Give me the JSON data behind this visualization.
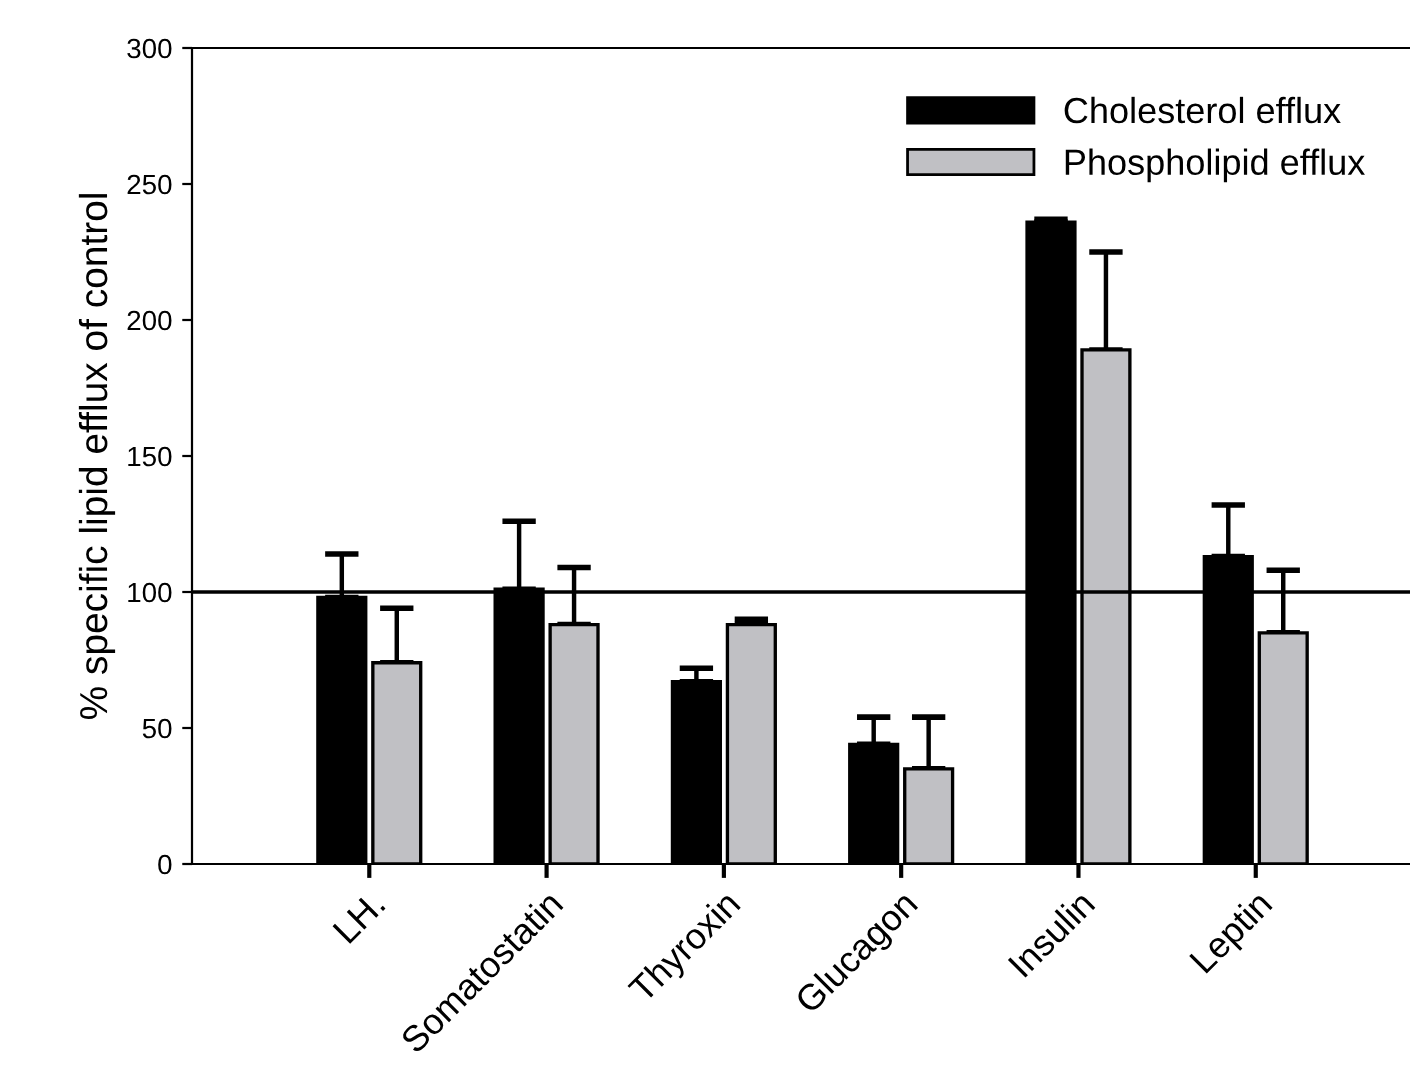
{
  "chart_data": {
    "type": "bar",
    "ylabel": "% specific lipid efflux of control",
    "categories": [
      "LH.",
      "Somatostatin",
      "Thyroxin",
      "Glucagon",
      "Insulin",
      "Leptin"
    ],
    "series": [
      {
        "name": "Cholesterol efflux",
        "color": "#000000",
        "values": [
          98,
          101,
          67,
          44,
          236,
          113
        ],
        "errors": [
          [
            98,
            114
          ],
          [
            101,
            126
          ],
          [
            67,
            72
          ],
          [
            44,
            54
          ],
          [
            236,
            237
          ],
          [
            113,
            132
          ]
        ]
      },
      {
        "name": "Phospholipid efflux",
        "color": "#c0c0c4",
        "values": [
          74,
          88,
          88,
          35,
          189,
          85
        ],
        "errors": [
          [
            74,
            94
          ],
          [
            88,
            109
          ],
          [
            88,
            90
          ],
          [
            35,
            54
          ],
          [
            189,
            225
          ],
          [
            85,
            108
          ]
        ]
      }
    ],
    "ylim": [
      0,
      300
    ],
    "yticks": [
      0,
      50,
      100,
      150,
      200,
      250,
      300
    ],
    "ref_lines": [
      {
        "axis": "y",
        "value": 100,
        "color": "#000000",
        "line_style": "solid"
      }
    ],
    "grid": false,
    "legend": "top right"
  }
}
